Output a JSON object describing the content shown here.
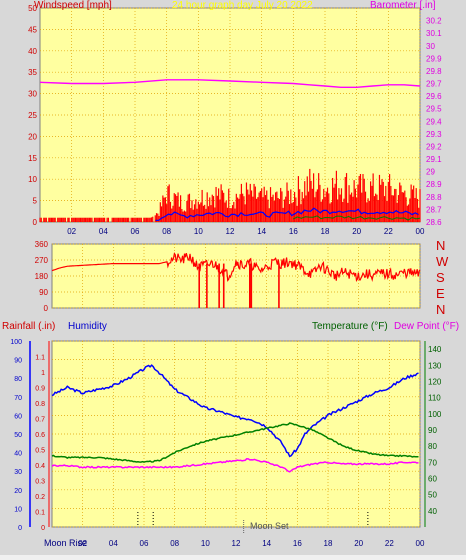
{
  "header": {
    "left_title": "Windspeed [mph]",
    "center_title": "24 hour graph day   July 20 2022",
    "right_title": "Barometer [.in]"
  },
  "bottom_header": {
    "rain_label": "Rainfall (.in)",
    "humidity_label": "Humidity",
    "temp_label": "Temperature (°F)",
    "dew_label": "Dew Point (°F)"
  },
  "direction_letters": [
    "N",
    "W",
    "S",
    "E",
    "N"
  ],
  "moon": {
    "rise_label": "Moon Rise",
    "set_label": "Moon Set"
  },
  "colors": {
    "plot_bg": "#ffffa0",
    "windspeed": "#ff0000",
    "gust_max": "#0000ff",
    "wind_green": "#008000",
    "barometer": "#ff00ff",
    "direction": "#ff0000",
    "humidity": "#0000ff",
    "temperature": "#008000",
    "dewpoint": "#ff00ff",
    "rain": "#ff0000"
  },
  "chart_data": [
    {
      "type": "line",
      "name": "wind-barometer",
      "x_ticks": [
        "02",
        "04",
        "06",
        "08",
        "10",
        "12",
        "14",
        "16",
        "18",
        "20",
        "22",
        "00"
      ],
      "ylim_left": [
        0,
        50
      ],
      "yticks_left": [
        0,
        5,
        10,
        15,
        20,
        25,
        30,
        35,
        40,
        45,
        50
      ],
      "ylim_right": [
        28.6,
        30.3
      ],
      "yticks_right": [
        "28.6",
        "28.7",
        "28.8",
        "28.9",
        "29",
        "29.1",
        "29.2",
        "29.3",
        "29.4",
        "29.5",
        "29.6",
        "29.7",
        "29.8",
        "29.9",
        "30",
        "30.1",
        "30.2"
      ],
      "grid": true,
      "series": [
        {
          "axis": "right",
          "x": [
            0,
            2,
            4,
            6,
            8,
            9,
            10,
            12,
            14,
            16,
            17,
            18,
            19,
            20,
            21,
            22,
            23,
            24
          ],
          "values": [
            29.71,
            29.7,
            29.7,
            29.71,
            29.73,
            29.73,
            29.73,
            29.72,
            29.71,
            29.7,
            29.69,
            29.68,
            29.67,
            29.67,
            29.68,
            29.69,
            29.69,
            29.68
          ]
        },
        {
          "axis": "left",
          "x": [
            0,
            1,
            2,
            3,
            4,
            5,
            6,
            7,
            7.5,
            8,
            9,
            10,
            11,
            12,
            13,
            14,
            15,
            16,
            17,
            18,
            19,
            20,
            21,
            22,
            23,
            24
          ],
          "values": [
            1,
            1,
            1,
            1,
            1,
            1,
            1,
            1,
            2,
            6,
            4,
            5,
            6,
            5,
            6,
            5,
            5,
            6,
            8,
            7,
            8,
            7,
            7,
            7,
            6,
            5
          ]
        }
      ]
    },
    {
      "type": "line",
      "name": "wind-direction",
      "x_ticks": [
        "02",
        "04",
        "06",
        "08",
        "10",
        "12",
        "14",
        "16",
        "18",
        "20",
        "22",
        "00"
      ],
      "ylim": [
        0,
        360
      ],
      "yticks": [
        0,
        90,
        180,
        270,
        360
      ],
      "grid": true,
      "series": [
        {
          "x": [
            0,
            0.5,
            1,
            2,
            3,
            4,
            5,
            6,
            7,
            7.5,
            8,
            8.5,
            9,
            9.5,
            10,
            10.5,
            11,
            11.5,
            12,
            12.5,
            13,
            13.5,
            14,
            14.5,
            15,
            15.5,
            16,
            16.5,
            17,
            17.5,
            18,
            18.5,
            19,
            19.5,
            20,
            20.5,
            21,
            21.5,
            22,
            22.5,
            23,
            23.5,
            24
          ],
          "values": [
            210,
            225,
            235,
            240,
            245,
            250,
            250,
            250,
            250,
            260,
            280,
            270,
            290,
            230,
            240,
            250,
            220,
            180,
            260,
            240,
            250,
            210,
            230,
            260,
            250,
            260,
            240,
            210,
            190,
            240,
            210,
            180,
            200,
            190,
            180,
            190,
            185,
            195,
            190,
            185,
            200,
            195,
            190
          ]
        }
      ]
    },
    {
      "type": "line",
      "name": "rain-humidity-temp",
      "x_ticks": [
        "02",
        "04",
        "06",
        "08",
        "10",
        "12",
        "14",
        "16",
        "18",
        "20",
        "22",
        "00"
      ],
      "ylim_left": [
        0,
        100
      ],
      "yticks_left_humidity": [
        0,
        10,
        20,
        30,
        40,
        50,
        60,
        70,
        80,
        90,
        100
      ],
      "ylim_left_rain": [
        0,
        1.2
      ],
      "yticks_left_rain": [
        "0",
        "0.1",
        "0.2",
        "0.3",
        "0.4",
        "0.5",
        "0.6",
        "0.7",
        "0.8",
        "0.9",
        "1",
        "1.1"
      ],
      "ylim_right": [
        30,
        145
      ],
      "yticks_right": [
        40,
        50,
        60,
        70,
        80,
        90,
        100,
        110,
        120,
        130,
        140
      ],
      "grid": true,
      "series": [
        {
          "label": "humidity",
          "x": [
            0,
            1,
            2,
            3,
            4,
            5,
            6,
            6.5,
            7,
            8,
            9,
            10,
            11,
            12,
            13,
            14,
            15,
            15.5,
            16,
            16.5,
            17,
            18,
            19,
            20,
            21,
            22,
            23,
            24
          ],
          "values": [
            71,
            75,
            72,
            74,
            76,
            80,
            85,
            87,
            83,
            74,
            69,
            64,
            62,
            59,
            58,
            54,
            45,
            38,
            42,
            50,
            54,
            60,
            64,
            68,
            72,
            75,
            80,
            83
          ]
        },
        {
          "label": "temperature",
          "x": [
            0,
            1,
            2,
            3,
            4,
            5,
            6,
            7,
            8,
            9,
            10,
            11,
            12,
            13,
            14,
            15,
            15.5,
            16,
            17,
            18,
            19,
            20,
            21,
            22,
            23,
            24
          ],
          "values": [
            74,
            73,
            73,
            73,
            72,
            71,
            70,
            71,
            76,
            80,
            83,
            85,
            87,
            89,
            91,
            93,
            94,
            93,
            90,
            85,
            80,
            77,
            75,
            74,
            74,
            73
          ]
        },
        {
          "label": "dewpoint",
          "x": [
            0,
            1,
            2,
            3,
            4,
            5,
            6,
            7,
            8,
            9,
            10,
            11,
            12,
            13,
            14,
            15,
            15.5,
            16,
            17,
            18,
            19,
            20,
            21,
            22,
            23,
            24
          ],
          "values": [
            68,
            68,
            67,
            67,
            67,
            67,
            67,
            67,
            67,
            68,
            69,
            70,
            71,
            72,
            70,
            67,
            64,
            67,
            69,
            70,
            69,
            69,
            69,
            69,
            70,
            70
          ]
        }
      ]
    }
  ]
}
